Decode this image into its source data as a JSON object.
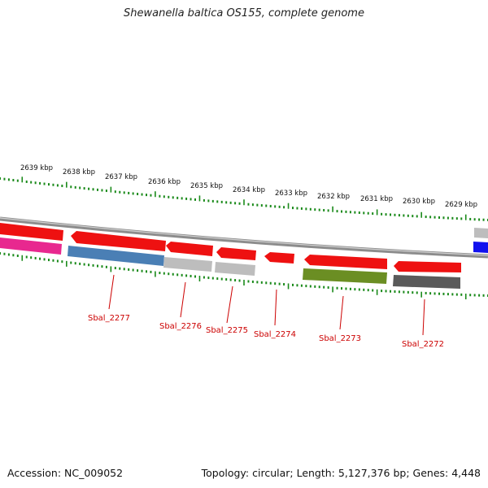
{
  "title": "Shewanella baltica OS155, complete genome",
  "footer": {
    "accession": "Accession: NC_009052",
    "summary": "Topology: circular; Length: 5,127,376 bp; Genes: 4,448"
  },
  "colors": {
    "tick": "#1a8a1a",
    "gene_label": "#cc0000",
    "backbone": "#8c8c8c",
    "red_gene": "#ee1111",
    "blue_feature": "#4a7fb5",
    "light_gray_feature": "#bdbdbd",
    "olive_feature": "#6b8e23",
    "dark_gray_feature": "#5a5a5a",
    "magenta_feature": "#e8288f",
    "blue_gene": "#1111ee"
  },
  "scale": {
    "labels": [
      "2639 kbp",
      "2638 kbp",
      "2637 kbp",
      "2636 kbp",
      "2635 kbp",
      "2634 kbp",
      "2633 kbp",
      "2632 kbp",
      "2631 kbp",
      "2630 kbp",
      "2629 kbp"
    ]
  },
  "genes": [
    {
      "label": "Sbal_2277",
      "color": "red_gene",
      "strand": "reverse"
    },
    {
      "label": "Sbal_2276",
      "color": "red_gene",
      "strand": "reverse"
    },
    {
      "label": "Sbal_2275",
      "color": "red_gene",
      "strand": "reverse"
    },
    {
      "label": "Sbal_2274",
      "color": "red_gene",
      "strand": "reverse"
    },
    {
      "label": "Sbal_2273",
      "color": "red_gene",
      "strand": "reverse"
    },
    {
      "label": "Sbal_2272",
      "color": "red_gene",
      "strand": "reverse"
    }
  ]
}
